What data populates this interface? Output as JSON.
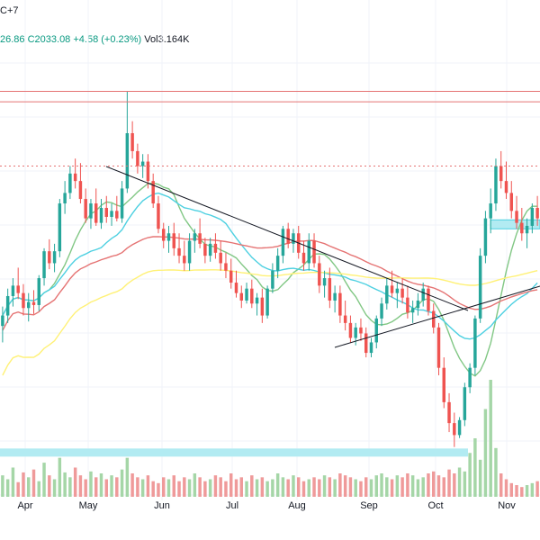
{
  "legend": {
    "timezone_fragment": "C+7",
    "low_fragment": "26.86",
    "close": "C2033.08",
    "change": "+4.58 (+0.23%)",
    "volume": "Vol3.164K"
  },
  "chart_data": {
    "type": "candlestick",
    "title": "",
    "xlabel": "",
    "ylabel": "",
    "x_tick_labels": [
      "Apr",
      "May",
      "Jun",
      "Jul",
      "Aug",
      "Sep",
      "Oct",
      "Nov"
    ],
    "y_range_estimate": [
      1810,
      2075
    ],
    "grid": true,
    "candles_ohlc": [
      [
        1893,
        1906,
        1882,
        1900
      ],
      [
        1900,
        1918,
        1895,
        1913
      ],
      [
        1913,
        1925,
        1906,
        1920
      ],
      [
        1920,
        1932,
        1911,
        1915
      ],
      [
        1915,
        1921,
        1900,
        1905
      ],
      [
        1905,
        1915,
        1896,
        1909
      ],
      [
        1909,
        1917,
        1901,
        1907
      ],
      [
        1907,
        1927,
        1903,
        1925
      ],
      [
        1925,
        1945,
        1920,
        1943
      ],
      [
        1943,
        1951,
        1931,
        1935
      ],
      [
        1935,
        1948,
        1929,
        1943
      ],
      [
        1943,
        1978,
        1939,
        1975
      ],
      [
        1975,
        1990,
        1968,
        1982
      ],
      [
        1982,
        2000,
        1978,
        1995
      ],
      [
        1995,
        2005,
        1985,
        1990
      ],
      [
        1990,
        2002,
        1975,
        1978
      ],
      [
        1978,
        1985,
        1962,
        1965
      ],
      [
        1965,
        1978,
        1958,
        1975
      ],
      [
        1975,
        1985,
        1960,
        1962
      ],
      [
        1962,
        1978,
        1958,
        1972
      ],
      [
        1972,
        1980,
        1962,
        1966
      ],
      [
        1966,
        1975,
        1960,
        1970
      ],
      [
        1970,
        1980,
        1963,
        1965
      ],
      [
        1965,
        1990,
        1962,
        1985
      ],
      [
        1985,
        2050,
        1982,
        2022
      ],
      [
        2022,
        2030,
        2005,
        2010
      ],
      [
        2010,
        2015,
        1995,
        2000
      ],
      [
        2000,
        2008,
        1992,
        2003
      ],
      [
        2003,
        2008,
        1985,
        1990
      ],
      [
        1990,
        1995,
        1972,
        1975
      ],
      [
        1975,
        1980,
        1955,
        1958
      ],
      [
        1958,
        1962,
        1945,
        1950
      ],
      [
        1950,
        1960,
        1942,
        1955
      ],
      [
        1955,
        1962,
        1940,
        1945
      ],
      [
        1945,
        1955,
        1935,
        1940
      ],
      [
        1940,
        1950,
        1930,
        1935
      ],
      [
        1935,
        1955,
        1930,
        1950
      ],
      [
        1950,
        1958,
        1942,
        1955
      ],
      [
        1955,
        1965,
        1945,
        1948
      ],
      [
        1948,
        1952,
        1935,
        1940
      ],
      [
        1940,
        1952,
        1936,
        1948
      ],
      [
        1948,
        1955,
        1938,
        1942
      ],
      [
        1942,
        1950,
        1930,
        1935
      ],
      [
        1935,
        1942,
        1925,
        1930
      ],
      [
        1930,
        1938,
        1918,
        1922
      ],
      [
        1922,
        1930,
        1912,
        1915
      ],
      [
        1915,
        1920,
        1905,
        1910
      ],
      [
        1910,
        1922,
        1908,
        1918
      ],
      [
        1918,
        1924,
        1905,
        1908
      ],
      [
        1908,
        1915,
        1900,
        1912
      ],
      [
        1912,
        1918,
        1895,
        1900
      ],
      [
        1900,
        1920,
        1898,
        1918
      ],
      [
        1918,
        1935,
        1915,
        1930
      ],
      [
        1930,
        1945,
        1925,
        1940
      ],
      [
        1940,
        1960,
        1935,
        1958
      ],
      [
        1958,
        1962,
        1945,
        1948
      ],
      [
        1948,
        1958,
        1942,
        1955
      ],
      [
        1955,
        1960,
        1938,
        1942
      ],
      [
        1942,
        1950,
        1930,
        1935
      ],
      [
        1935,
        1955,
        1930,
        1950
      ],
      [
        1950,
        1955,
        1932,
        1935
      ],
      [
        1935,
        1940,
        1915,
        1920
      ],
      [
        1920,
        1930,
        1912,
        1925
      ],
      [
        1925,
        1932,
        1905,
        1910
      ],
      [
        1910,
        1920,
        1902,
        1915
      ],
      [
        1915,
        1920,
        1895,
        1900
      ],
      [
        1900,
        1910,
        1890,
        1895
      ],
      [
        1895,
        1900,
        1882,
        1885
      ],
      [
        1885,
        1895,
        1880,
        1892
      ],
      [
        1892,
        1898,
        1883,
        1888
      ],
      [
        1888,
        1892,
        1872,
        1875
      ],
      [
        1875,
        1885,
        1872,
        1882
      ],
      [
        1882,
        1900,
        1878,
        1898
      ],
      [
        1898,
        1912,
        1893,
        1908
      ],
      [
        1908,
        1925,
        1904,
        1920
      ],
      [
        1920,
        1930,
        1912,
        1915
      ],
      [
        1915,
        1922,
        1905,
        1918
      ],
      [
        1918,
        1925,
        1908,
        1912
      ],
      [
        1912,
        1920,
        1898,
        1902
      ],
      [
        1902,
        1910,
        1895,
        1905
      ],
      [
        1905,
        1915,
        1900,
        1910
      ],
      [
        1910,
        1922,
        1906,
        1918
      ],
      [
        1918,
        1920,
        1900,
        1903
      ],
      [
        1903,
        1908,
        1888,
        1892
      ],
      [
        1892,
        1895,
        1860,
        1865
      ],
      [
        1865,
        1872,
        1838,
        1842
      ],
      [
        1842,
        1848,
        1822,
        1828
      ],
      [
        1828,
        1835,
        1812,
        1820
      ],
      [
        1820,
        1832,
        1818,
        1830
      ],
      [
        1830,
        1855,
        1826,
        1852
      ],
      [
        1852,
        1868,
        1848,
        1865
      ],
      [
        1865,
        1900,
        1860,
        1898
      ],
      [
        1898,
        1945,
        1895,
        1940
      ],
      [
        1940,
        1970,
        1935,
        1965
      ],
      [
        1965,
        1985,
        1955,
        1975
      ],
      [
        1975,
        2005,
        1970,
        2000
      ],
      [
        2000,
        2010,
        1985,
        1990
      ],
      [
        1990,
        2003,
        1978,
        1982
      ],
      [
        1982,
        1990,
        1965,
        1970
      ],
      [
        1970,
        1980,
        1958,
        1962
      ],
      [
        1962,
        1972,
        1950,
        1955
      ],
      [
        1955,
        1965,
        1945,
        1960
      ],
      [
        1960,
        1975,
        1955,
        1972
      ],
      [
        1972,
        1980,
        1960,
        1965
      ]
    ],
    "volume": [
      22,
      18,
      30,
      15,
      25,
      20,
      28,
      16,
      35,
      22,
      18,
      40,
      25,
      20,
      30,
      22,
      18,
      26,
      20,
      24,
      18,
      22,
      20,
      28,
      40,
      24,
      20,
      18,
      22,
      16,
      14,
      20,
      18,
      22,
      16,
      20,
      18,
      24,
      20,
      16,
      18,
      22,
      20,
      16,
      24,
      18,
      20,
      16,
      22,
      18,
      20,
      16,
      18,
      24,
      20,
      18,
      22,
      20,
      16,
      18,
      20,
      18,
      22,
      20,
      18,
      24,
      22,
      20,
      18,
      16,
      20,
      18,
      22,
      24,
      20,
      18,
      22,
      20,
      24,
      22,
      18,
      20,
      24,
      26,
      22,
      20,
      28,
      24,
      30,
      26,
      45,
      60,
      38,
      90,
      120,
      50,
      24,
      18,
      14,
      12,
      10,
      12,
      14,
      16
    ],
    "moving_averages": [
      {
        "color": "#81c784"
      },
      {
        "color": "#4dd0e1"
      },
      {
        "color": "#e57373"
      },
      {
        "color": "#fff176"
      }
    ],
    "annotations": {
      "resistance_lines": [
        2050,
        2043
      ],
      "dotted_level": 2000,
      "supply_zone": [
        1958,
        1964
      ],
      "demand_zone": [
        1807,
        1811
      ]
    }
  },
  "colors": {
    "up": "#26a69a",
    "down": "#ef5350",
    "up_volume": "#a5d6a7",
    "down_volume": "#ef9a9a",
    "grid": "#f0f3fa",
    "zone": "#b2ebf2",
    "resistance": "#e57373",
    "trendline": "#131722"
  }
}
